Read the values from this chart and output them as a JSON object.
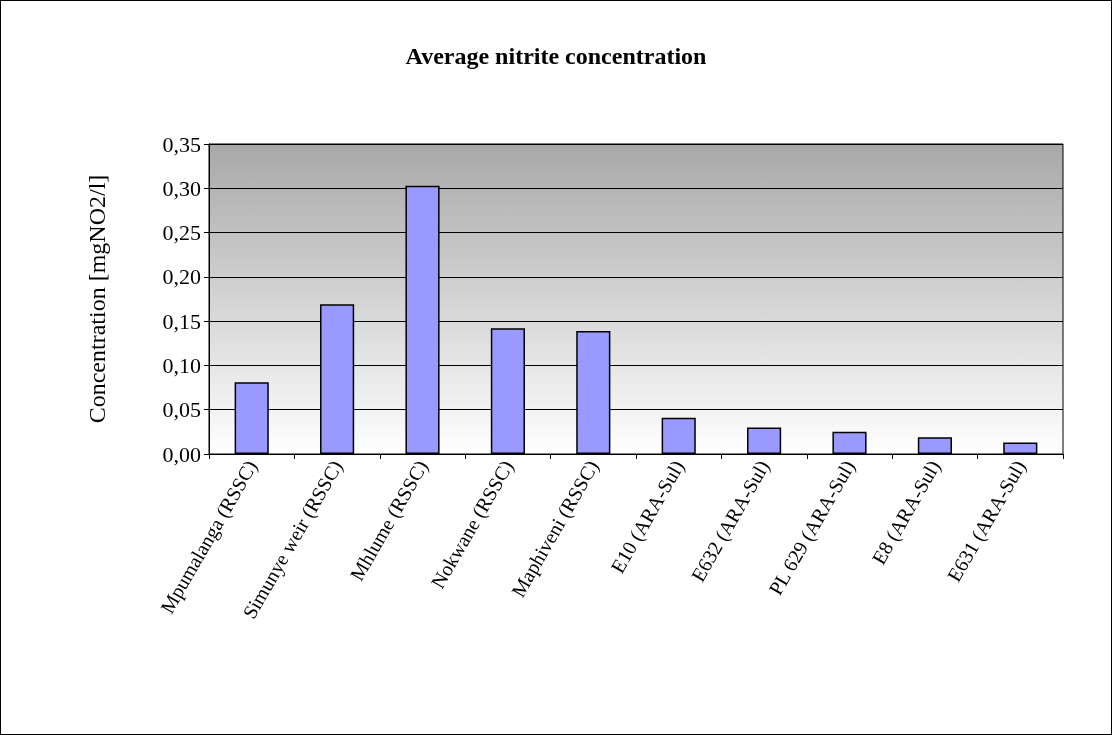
{
  "chart_data": {
    "type": "bar",
    "title": "Average nitrite concentration",
    "ylabel": "Concentration [mgNO2/l]",
    "categories": [
      "Mpumalanga (RSSC)",
      "Simunye weir (RSSC)",
      "Mhlume (RSSC)",
      "Nokwane (RSSC)",
      "Maphiveni (RSSC)",
      "E10 (ARA-Sul)",
      "E632 (ARA-Sul)",
      "PL 629 (ARA-Sul)",
      "E8 (ARA-Sul)",
      "E631 (ARA-Sul)"
    ],
    "values": [
      0.081,
      0.169,
      0.303,
      0.142,
      0.139,
      0.041,
      0.03,
      0.025,
      0.019,
      0.013
    ],
    "color": "#9999ff",
    "ylim": [
      0,
      0.35
    ],
    "yticks": [
      {
        "value": 0,
        "label": "0,00"
      },
      {
        "value": 0.05,
        "label": "0,05"
      },
      {
        "value": 0.1,
        "label": "0,10"
      },
      {
        "value": 0.15,
        "label": "0,15"
      },
      {
        "value": 0.2,
        "label": "0,20"
      },
      {
        "value": 0.25,
        "label": "0,25"
      },
      {
        "value": 0.3,
        "label": "0,30"
      },
      {
        "value": 0.35,
        "label": "0,35"
      }
    ],
    "grid": "y"
  }
}
